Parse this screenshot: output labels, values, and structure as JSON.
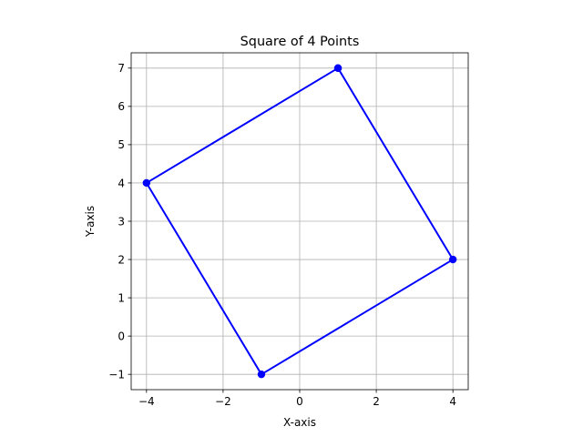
{
  "chart_data": {
    "type": "line",
    "title": "Square of 4 Points",
    "xlabel": "X-axis",
    "ylabel": "Y-axis",
    "xlim": [
      -4.4,
      4.4
    ],
    "ylim": [
      -1.4,
      7.4
    ],
    "xticks": [
      -4,
      -2,
      0,
      2,
      4
    ],
    "yticks": [
      -1,
      0,
      1,
      2,
      3,
      4,
      5,
      6,
      7
    ],
    "xtick_labels": [
      "−4",
      "−2",
      "0",
      "2",
      "4"
    ],
    "ytick_labels": [
      "−1",
      "0",
      "1",
      "2",
      "3",
      "4",
      "5",
      "6",
      "7"
    ],
    "grid": true,
    "series": [
      {
        "x": [
          1,
          4,
          -1,
          -4,
          1
        ],
        "y": [
          7,
          2,
          -1,
          4,
          7
        ],
        "color": "#0000ff",
        "marker": "circle"
      }
    ]
  }
}
